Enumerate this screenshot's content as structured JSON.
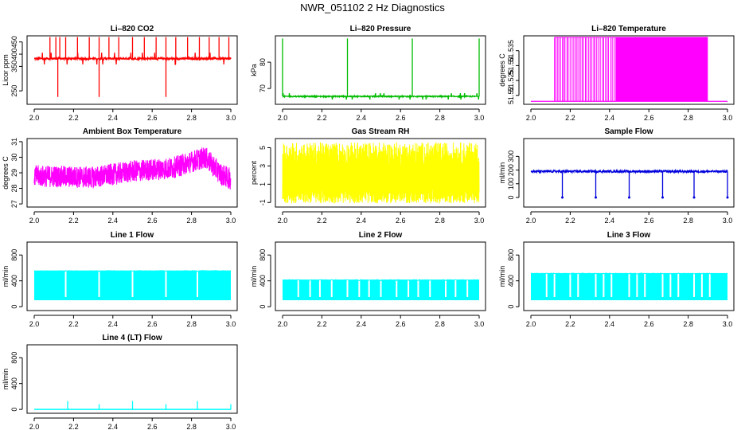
{
  "main_title": "NWR_051102  2 Hz Diagnostics",
  "chart_data": [
    {
      "type": "line",
      "title": "Li–820 CO2",
      "ylabel": "Licor ppm",
      "color": "#ff0000",
      "xlim": [
        2.0,
        3.0
      ],
      "ylim": [
        195,
        475
      ],
      "xticks": [
        2.0,
        2.2,
        2.4,
        2.6,
        2.8,
        3.0
      ],
      "yticks": [
        250,
        350,
        400,
        450
      ],
      "series": [
        {
          "baseline": 382,
          "noise": 4,
          "spikes_up": [
            2.08,
            2.11,
            2.13,
            2.16,
            2.22,
            2.28,
            2.33,
            2.38,
            2.43,
            2.5,
            2.56,
            2.62,
            2.67,
            2.72,
            2.78,
            2.84,
            2.89,
            2.94,
            2.99
          ],
          "spike_up_to": 470,
          "spikes_down": [
            2.12,
            2.33,
            2.67
          ],
          "spike_down_to": 225
        }
      ]
    },
    {
      "type": "line",
      "title": "Li–820 Pressure",
      "ylabel": "kPa",
      "color": "#00bb00",
      "xlim": [
        2.0,
        3.0
      ],
      "ylim": [
        64,
        90
      ],
      "xticks": [
        2.0,
        2.2,
        2.4,
        2.6,
        2.8,
        3.0
      ],
      "yticks": [
        70,
        80
      ],
      "series": [
        {
          "baseline": 67,
          "noise": 0.2,
          "spikes_up": [
            2.0,
            2.33,
            2.66,
            3.0
          ],
          "spike_up_to": 89
        }
      ]
    },
    {
      "type": "line",
      "title": "Li–820 Temperature",
      "ylabel": "degrees C",
      "color": "#ff00ff",
      "xlim": [
        2.0,
        3.0
      ],
      "ylim": [
        51.517,
        51.54
      ],
      "xticks": [
        2.0,
        2.2,
        2.4,
        2.6,
        2.8,
        3.0
      ],
      "yticks": [
        51.52,
        51.525,
        51.53,
        51.535
      ],
      "series": [
        {
          "low": 51.518,
          "high": 51.5395,
          "sparse_range": [
            2.12,
            2.43
          ],
          "dense_range": [
            2.43,
            2.9
          ]
        }
      ]
    },
    {
      "type": "line",
      "title": "Ambient Box Temperature",
      "ylabel": "degrees C",
      "color": "#ff00ff",
      "xlim": [
        2.0,
        3.0
      ],
      "ylim": [
        26.8,
        31.2
      ],
      "xticks": [
        2.0,
        2.2,
        2.4,
        2.6,
        2.8,
        3.0
      ],
      "yticks": [
        27,
        28,
        29,
        30,
        31
      ],
      "series": [
        {
          "trend": [
            [
              2.0,
              28.8
            ],
            [
              2.3,
              28.7
            ],
            [
              2.5,
              29.1
            ],
            [
              2.7,
              29.3
            ],
            [
              2.87,
              30.0
            ],
            [
              2.95,
              28.9
            ],
            [
              3.0,
              28.6
            ]
          ],
          "noise": 0.7
        }
      ]
    },
    {
      "type": "line",
      "title": "Gas Stream RH",
      "ylabel": "percent",
      "color": "#ffff00",
      "xlim": [
        2.0,
        3.0
      ],
      "ylim": [
        -1.5,
        6.0
      ],
      "xticks": [
        2.0,
        2.2,
        2.4,
        2.6,
        2.8,
        3.0
      ],
      "yticks": [
        -1,
        1,
        3,
        5
      ],
      "series": [
        {
          "min": -1.1,
          "max": 5.6,
          "typical_high": 4.5
        }
      ]
    },
    {
      "type": "line",
      "title": "Sample Flow",
      "ylabel": "ml/min",
      "color": "#0000dd",
      "xlim": [
        2.0,
        3.0
      ],
      "ylim": [
        -70,
        430
      ],
      "xticks": [
        2.0,
        2.2,
        2.4,
        2.6,
        2.8,
        3.0
      ],
      "yticks": [
        0,
        100,
        200,
        300
      ],
      "series": [
        {
          "baseline": 190,
          "noise": 8,
          "spikes_down": [
            2.16,
            2.33,
            2.5,
            2.67,
            2.83,
            3.0
          ],
          "spike_down_to": 0
        }
      ]
    },
    {
      "type": "area",
      "title": "Line 1 Flow",
      "ylabel": "ml/min",
      "color": "#00ffff",
      "xlim": [
        2.0,
        3.0
      ],
      "ylim": [
        -60,
        1000
      ],
      "xticks": [
        2.0,
        2.2,
        2.4,
        2.6,
        2.8,
        3.0
      ],
      "yticks": [
        0,
        400,
        800
      ],
      "series": [
        {
          "low": 100,
          "high": 560,
          "gaps": [
            2.16,
            2.33,
            2.5,
            2.67,
            2.83
          ]
        }
      ]
    },
    {
      "type": "area",
      "title": "Line 2 Flow",
      "ylabel": "ml/min",
      "color": "#00ffff",
      "xlim": [
        2.0,
        3.0
      ],
      "ylim": [
        -60,
        1000
      ],
      "xticks": [
        2.0,
        2.2,
        2.4,
        2.6,
        2.8,
        3.0
      ],
      "yticks": [
        0,
        400,
        800
      ],
      "series": [
        {
          "low": 100,
          "high": 420,
          "gaps": [
            2.08,
            2.14,
            2.19,
            2.25,
            2.33,
            2.39,
            2.44,
            2.5,
            2.58,
            2.64,
            2.69,
            2.75,
            2.83,
            2.88,
            2.94
          ]
        }
      ]
    },
    {
      "type": "area",
      "title": "Line 3 Flow",
      "ylabel": "ml/min",
      "color": "#00ffff",
      "xlim": [
        2.0,
        3.0
      ],
      "ylim": [
        -60,
        1000
      ],
      "xticks": [
        2.0,
        2.2,
        2.4,
        2.6,
        2.8,
        3.0
      ],
      "yticks": [
        0,
        400,
        800
      ],
      "series": [
        {
          "low": 100,
          "high": 520,
          "gaps": [
            2.08,
            2.12,
            2.2,
            2.24,
            2.33,
            2.37,
            2.41,
            2.5,
            2.54,
            2.58,
            2.67,
            2.71,
            2.75,
            2.83,
            2.87,
            2.91
          ]
        }
      ]
    },
    {
      "type": "line",
      "title": "Line 4 (LT) Flow",
      "ylabel": "ml/min",
      "color": "#00ffff",
      "xlim": [
        2.0,
        3.0
      ],
      "ylim": [
        -60,
        1000
      ],
      "xticks": [
        2.0,
        2.2,
        2.4,
        2.6,
        2.8,
        3.0
      ],
      "yticks": [
        0,
        400,
        800
      ],
      "series": [
        {
          "baseline": 0,
          "spikes_up": [
            2.17,
            2.33,
            2.5,
            2.67,
            2.83,
            3.0
          ],
          "spike_heights": [
            130,
            80,
            130,
            80,
            130,
            80
          ]
        }
      ]
    }
  ]
}
